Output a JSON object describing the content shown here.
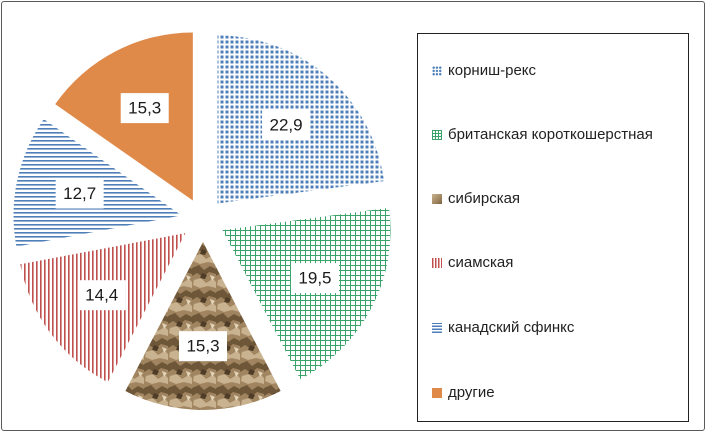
{
  "chart_data": {
    "type": "pie",
    "exploded": true,
    "legend_position": "right",
    "slices": [
      {
        "name": "корниш-рекс",
        "value": 22.9,
        "label": "22,9",
        "color": "#4f7fb8",
        "pattern": "dots"
      },
      {
        "name": "британская короткошерстная",
        "value": 19.5,
        "label": "19,5",
        "color": "#3aa36a",
        "pattern": "grid"
      },
      {
        "name": "сибирская",
        "value": 15.3,
        "label": "15,3",
        "color": "#a08560",
        "pattern": "texture"
      },
      {
        "name": "сиамская",
        "value": 14.4,
        "label": "14,4",
        "color": "#c0504d",
        "pattern": "vertical"
      },
      {
        "name": "канадский сфинкс",
        "value": 12.7,
        "label": "12,7",
        "color": "#4f7fb8",
        "pattern": "horizontal"
      },
      {
        "name": "другие",
        "value": 15.3,
        "label": "15,3",
        "color": "#e08a4a",
        "pattern": "solid"
      }
    ]
  }
}
